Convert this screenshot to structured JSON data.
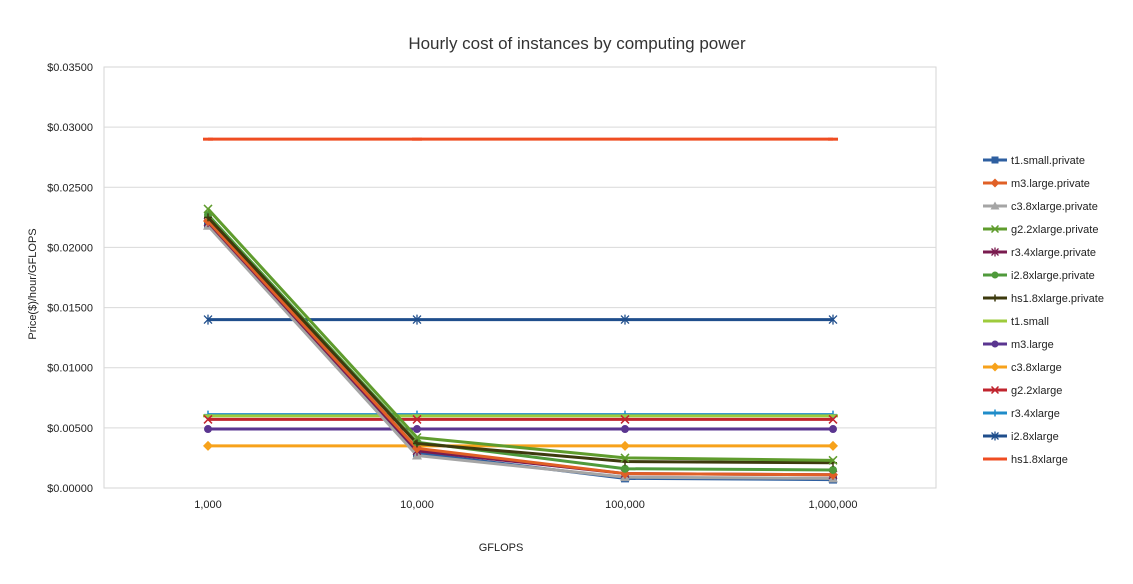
{
  "chart_data": {
    "type": "line",
    "title": "Hourly cost of instances by computing power",
    "xlabel": "GFLOPS",
    "ylabel": "Price($)/hour/GFLOPS",
    "categories": [
      "1,000",
      "10,000",
      "100,000",
      "1,000,000"
    ],
    "ylim": [
      0,
      0.035
    ],
    "yticks": [
      0,
      0.005,
      0.01,
      0.015,
      0.02,
      0.025,
      0.03,
      0.035
    ],
    "ytick_labels": [
      "$0.00000",
      "$0.00500",
      "$0.01000",
      "$0.01500",
      "$0.02000",
      "$0.02500",
      "$0.03000",
      "$0.03500"
    ],
    "grid": "horizontal",
    "legend_position": "right",
    "series": [
      {
        "name": "t1.small.private",
        "color": "#2e5fa0",
        "marker": "square",
        "values": [
          0.0219,
          0.0029,
          0.0008,
          0.0007
        ]
      },
      {
        "name": "m3.large.private",
        "color": "#e06026",
        "marker": "diamond",
        "values": [
          0.0222,
          0.0033,
          0.0012,
          0.0011
        ]
      },
      {
        "name": "c3.8xlarge.private",
        "color": "#a5a5a5",
        "marker": "triangle",
        "values": [
          0.0218,
          0.0027,
          0.0009,
          0.0008
        ]
      },
      {
        "name": "g2.2xlarge.private",
        "color": "#5f9c2d",
        "marker": "x",
        "values": [
          0.0232,
          0.0042,
          0.0025,
          0.0023
        ]
      },
      {
        "name": "r3.4xlarge.private",
        "color": "#7a1b4f",
        "marker": "star",
        "values": [
          0.0221,
          0.0031,
          0.0012,
          0.0011
        ]
      },
      {
        "name": "i2.8xlarge.private",
        "color": "#4f9a3b",
        "marker": "circle",
        "values": [
          0.0227,
          0.0038,
          0.0016,
          0.0015
        ]
      },
      {
        "name": "hs1.8xlarge.private",
        "color": "#3d3a0e",
        "marker": "plus",
        "values": [
          0.0225,
          0.0037,
          0.0022,
          0.0021
        ]
      },
      {
        "name": "t1.small",
        "color": "#9ecb3c",
        "marker": "dash",
        "values": [
          0.006,
          0.006,
          0.006,
          0.006
        ]
      },
      {
        "name": "m3.large",
        "color": "#5a3590",
        "marker": "circle",
        "values": [
          0.0049,
          0.0049,
          0.0049,
          0.0049
        ]
      },
      {
        "name": "c3.8xlarge",
        "color": "#f7a21b",
        "marker": "diamond",
        "values": [
          0.0035,
          0.0035,
          0.0035,
          0.0035
        ]
      },
      {
        "name": "g2.2xlarge",
        "color": "#c0242e",
        "marker": "x",
        "values": [
          0.0057,
          0.0057,
          0.0057,
          0.0057
        ]
      },
      {
        "name": "r3.4xlarge",
        "color": "#1f8cc9",
        "marker": "plus",
        "values": [
          0.0061,
          0.0061,
          0.0061,
          0.0061
        ]
      },
      {
        "name": "i2.8xlarge",
        "color": "#1f4e8c",
        "marker": "star",
        "values": [
          0.014,
          0.014,
          0.014,
          0.014
        ]
      },
      {
        "name": "hs1.8xlarge",
        "color": "#ef4d22",
        "marker": "dash",
        "values": [
          0.029,
          0.029,
          0.029,
          0.029
        ]
      }
    ]
  }
}
